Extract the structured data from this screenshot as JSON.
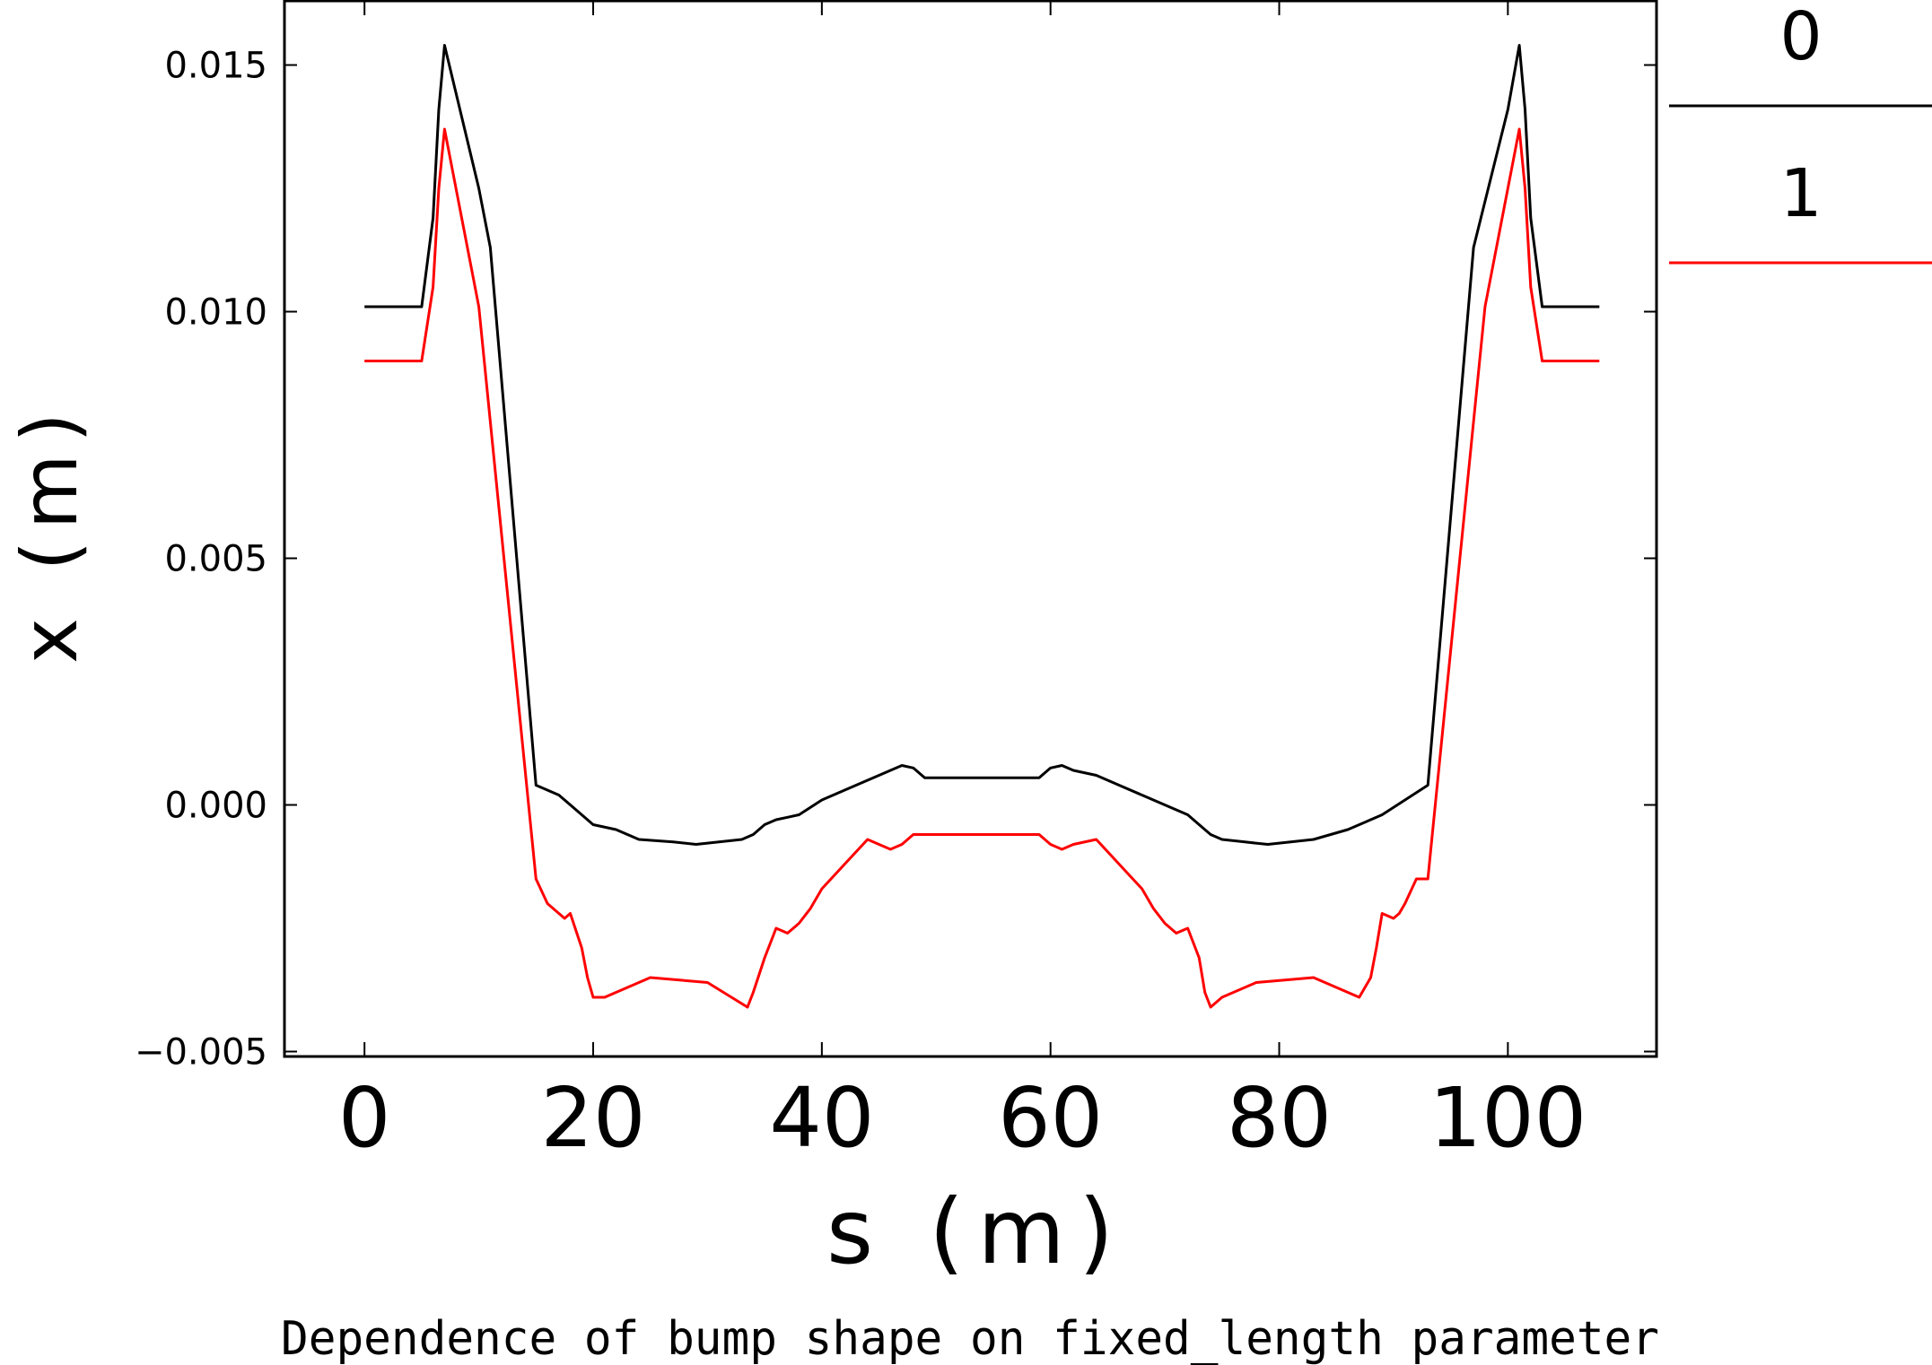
{
  "chart_data": {
    "type": "line",
    "title": "",
    "xlabel": "s (m)",
    "ylabel": "x (m)",
    "caption": "Dependence of bump shape on fixed_length parameter",
    "xlim": [
      -7,
      113
    ],
    "ylim": [
      -0.0051,
      0.0163
    ],
    "xticks": [
      0,
      20,
      40,
      60,
      80,
      100
    ],
    "xtick_labels": [
      "0",
      "20",
      "40",
      "60",
      "80",
      "100"
    ],
    "yticks": [
      -0.005,
      0.0,
      0.005,
      0.01,
      0.015
    ],
    "ytick_labels": [
      "−0.005",
      "0.000",
      "0.005",
      "0.010",
      "0.015"
    ],
    "grid": false,
    "legend_position": "right",
    "series": [
      {
        "name": "0",
        "color": "#000000",
        "x": [
          0,
          5,
          6,
          6.5,
          7,
          10,
          11,
          15,
          17,
          19,
          20,
          22,
          24,
          27,
          29,
          31,
          33,
          34,
          35,
          36,
          37,
          38,
          40,
          42,
          44,
          46,
          47,
          48,
          49,
          50,
          55,
          59,
          60,
          61,
          62,
          64,
          66,
          68,
          70,
          72,
          73,
          74,
          75,
          77,
          79,
          81,
          83,
          86,
          88,
          89,
          91,
          93,
          97,
          100,
          101,
          101.5,
          102,
          103,
          108
        ],
        "y": [
          0.0101,
          0.0101,
          0.0119,
          0.0141,
          0.0154,
          0.0125,
          0.0113,
          0.0004,
          0.0002,
          -0.0002,
          -0.0004,
          -0.0005,
          -0.0007,
          -0.00075,
          -0.0008,
          -0.00075,
          -0.0007,
          -0.0006,
          -0.0004,
          -0.0003,
          -0.00025,
          -0.0002,
          0.0001,
          0.0003,
          0.0005,
          0.0007,
          0.0008,
          0.00075,
          0.00055,
          0.00055,
          0.00055,
          0.00055,
          0.00075,
          0.0008,
          0.0007,
          0.0006,
          0.0004,
          0.0002,
          0.0,
          -0.0002,
          -0.0004,
          -0.0006,
          -0.0007,
          -0.00075,
          -0.0008,
          -0.00075,
          -0.0007,
          -0.0005,
          -0.0003,
          -0.0002,
          0.0001,
          0.0004,
          0.0113,
          0.0141,
          0.0154,
          0.0141,
          0.0119,
          0.0101,
          0.0101
        ]
      },
      {
        "name": "1",
        "color": "#ff0000",
        "x": [
          0,
          5,
          6,
          6.5,
          7,
          10,
          15,
          16,
          17,
          17.5,
          18,
          19,
          19.5,
          20,
          21,
          25,
          30,
          33.5,
          34,
          35,
          36,
          37,
          38,
          39,
          40,
          42,
          44,
          46,
          47,
          48,
          49,
          50,
          55,
          59,
          60,
          61,
          62,
          64,
          66,
          68,
          69,
          70,
          71,
          72,
          73,
          73.5,
          74,
          75,
          78,
          83,
          87,
          88,
          88.5,
          89,
          90,
          90.5,
          91,
          92,
          93,
          98,
          101,
          101.5,
          102,
          103,
          108
        ],
        "y": [
          0.009,
          0.009,
          0.0105,
          0.0125,
          0.0137,
          0.0101,
          -0.0015,
          -0.002,
          -0.0022,
          -0.0023,
          -0.0022,
          -0.0029,
          -0.0035,
          -0.0039,
          -0.0039,
          -0.0035,
          -0.0036,
          -0.0041,
          -0.0038,
          -0.0031,
          -0.0025,
          -0.0026,
          -0.0024,
          -0.0021,
          -0.0017,
          -0.0012,
          -0.0007,
          -0.0009,
          -0.0008,
          -0.0006,
          -0.0006,
          -0.0006,
          -0.0006,
          -0.0006,
          -0.0008,
          -0.0009,
          -0.0008,
          -0.0007,
          -0.0012,
          -0.0017,
          -0.0021,
          -0.0024,
          -0.0026,
          -0.0025,
          -0.0031,
          -0.0038,
          -0.0041,
          -0.0039,
          -0.0036,
          -0.0035,
          -0.0039,
          -0.0035,
          -0.0029,
          -0.0022,
          -0.0023,
          -0.0022,
          -0.002,
          -0.0015,
          -0.0015,
          0.0101,
          0.0137,
          0.0125,
          0.0105,
          0.009,
          0.009
        ]
      }
    ]
  }
}
